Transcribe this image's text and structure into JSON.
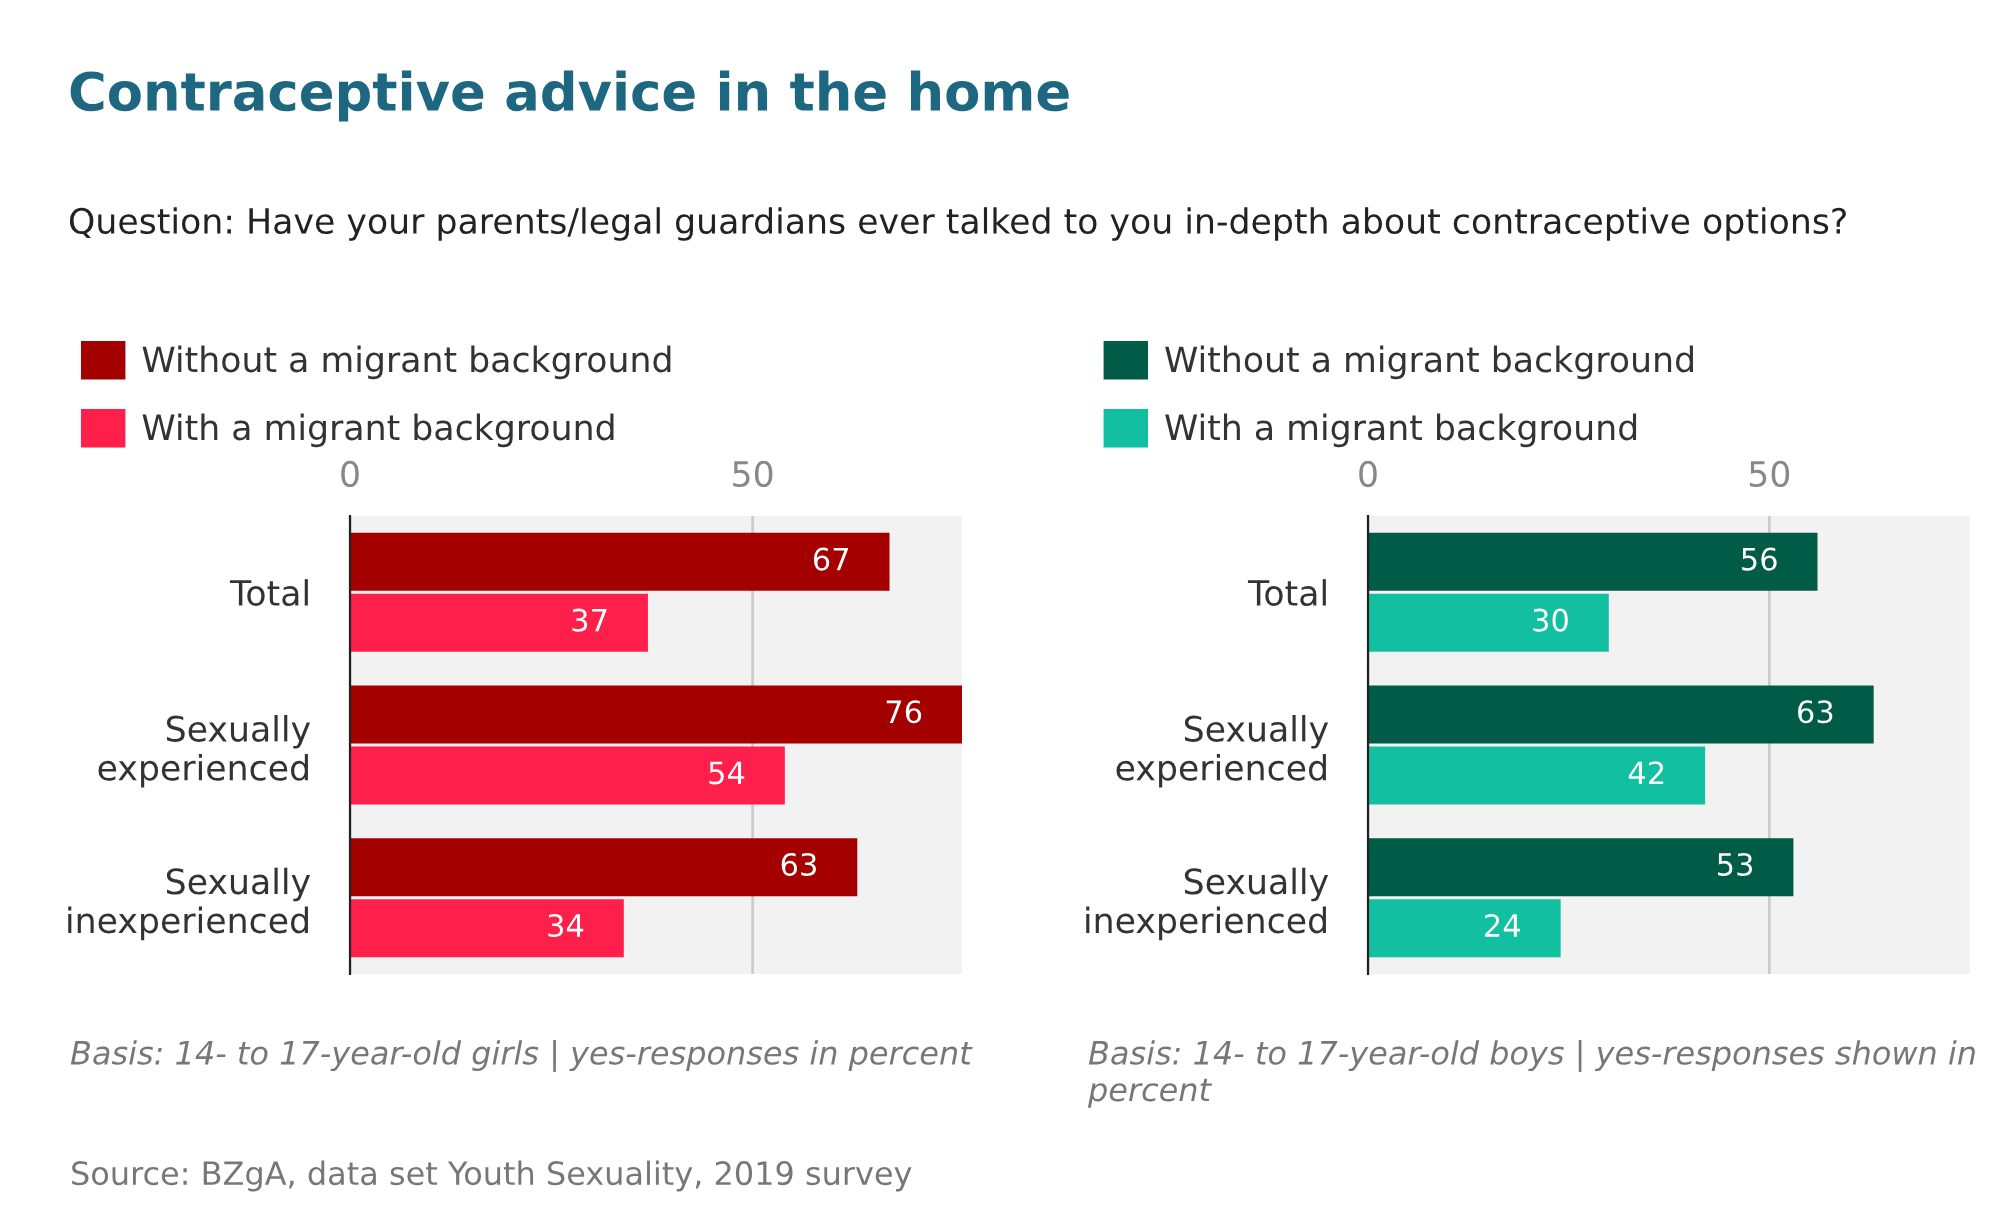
{
  "chart_data": [
    {
      "type": "bar",
      "orientation": "horizontal",
      "title": "Contraceptive advice in the home",
      "subtitle": "Question: Have your parents/legal guardians ever talked to you in-depth about contraceptive options?",
      "categories": [
        "Total",
        "Sexually\nexperienced",
        "Sexually\ninexperienced"
      ],
      "series": [
        {
          "name": "Without a migrant background",
          "color": "#a50000",
          "values": [
            67,
            76,
            63
          ]
        },
        {
          "name": "With a migrant background",
          "color": "#ff1f4b",
          "values": [
            37,
            54,
            34
          ]
        }
      ],
      "xlim": [
        0,
        76
      ],
      "xticks": [
        0,
        50
      ],
      "grid": "x",
      "legend": "top left",
      "data_labels": true,
      "annotations": [
        "Basis: 14- to 17-year-old girls | yes-responses in percent",
        "Source: BZgA, data set Youth Sexuality, 2019 survey"
      ]
    },
    {
      "type": "bar",
      "orientation": "horizontal",
      "categories": [
        "Total",
        "Sexually\nexperienced",
        "Sexually\ninexperienced"
      ],
      "series": [
        {
          "name": "Without a migrant background",
          "color": "#005c46",
          "values": [
            56,
            63,
            53
          ]
        },
        {
          "name": "With a migrant background",
          "color": "#12bfa0",
          "values": [
            30,
            42,
            24
          ]
        }
      ],
      "xlim": [
        0,
        75
      ],
      "xticks": [
        0,
        50
      ],
      "grid": "x",
      "legend": "top left",
      "data_labels": true,
      "annotations": [
        "Basis: 14- to 17-year-old boys | yes-responses shown in percent"
      ]
    }
  ]
}
